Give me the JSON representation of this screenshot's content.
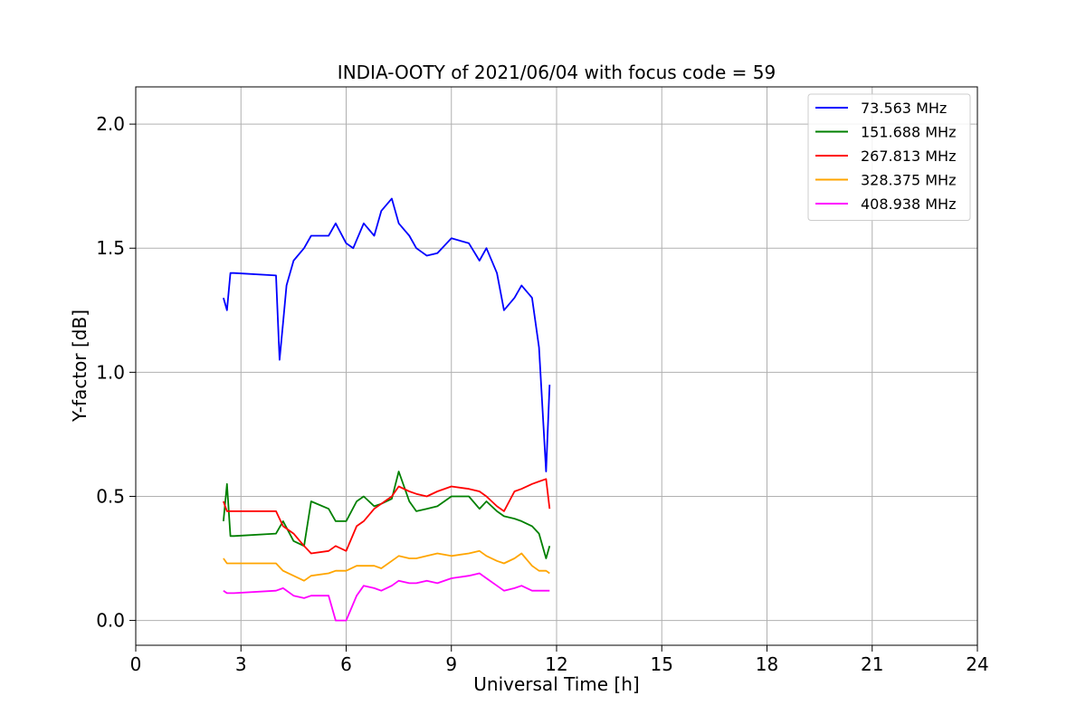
{
  "chart_data": {
    "type": "line",
    "title": "INDIA-OOTY of 2021/06/04 with focus code = 59",
    "xlabel": "Universal Time [h]",
    "ylabel": "Y-factor [dB]",
    "xlim": [
      0,
      24
    ],
    "ylim": [
      -0.1,
      2.15
    ],
    "xticks": [
      0,
      3,
      6,
      9,
      12,
      15,
      18,
      21,
      24
    ],
    "yticks": [
      0.0,
      0.5,
      1.0,
      1.5,
      2.0
    ],
    "xtick_labels": [
      "0",
      "3",
      "6",
      "9",
      "12",
      "15",
      "18",
      "21",
      "24"
    ],
    "ytick_labels": [
      "0.0",
      "0.5",
      "1.0",
      "1.5",
      "2.0"
    ],
    "grid": true,
    "legend_position": "top-right",
    "series": [
      {
        "name": "  73.563 MHz",
        "color": "#0000ff",
        "x": [
          2.5,
          2.6,
          2.7,
          2.8,
          4.0,
          4.1,
          4.2,
          4.3,
          4.5,
          4.8,
          5.0,
          5.5,
          5.7,
          6.0,
          6.2,
          6.5,
          6.8,
          7.0,
          7.3,
          7.5,
          7.8,
          8.0,
          8.3,
          8.6,
          9.0,
          9.5,
          9.8,
          10.0,
          10.3,
          10.5,
          10.8,
          11.0,
          11.3,
          11.5,
          11.7,
          11.8
        ],
        "y": [
          1.3,
          1.25,
          1.4,
          1.4,
          1.39,
          1.05,
          1.2,
          1.35,
          1.45,
          1.5,
          1.55,
          1.55,
          1.6,
          1.52,
          1.5,
          1.6,
          1.55,
          1.65,
          1.7,
          1.6,
          1.55,
          1.5,
          1.47,
          1.48,
          1.54,
          1.52,
          1.45,
          1.5,
          1.4,
          1.25,
          1.3,
          1.35,
          1.3,
          1.1,
          0.6,
          0.95
        ]
      },
      {
        "name": "151.688 MHz",
        "color": "#008000",
        "x": [
          2.5,
          2.6,
          2.7,
          2.8,
          4.0,
          4.2,
          4.5,
          4.8,
          5.0,
          5.5,
          5.7,
          6.0,
          6.3,
          6.5,
          6.8,
          7.0,
          7.3,
          7.5,
          7.8,
          8.0,
          8.3,
          8.6,
          9.0,
          9.5,
          9.8,
          10.0,
          10.3,
          10.5,
          10.8,
          11.0,
          11.3,
          11.5,
          11.7,
          11.8
        ],
        "y": [
          0.4,
          0.55,
          0.34,
          0.34,
          0.35,
          0.4,
          0.32,
          0.3,
          0.48,
          0.45,
          0.4,
          0.4,
          0.48,
          0.5,
          0.46,
          0.47,
          0.49,
          0.6,
          0.48,
          0.44,
          0.45,
          0.46,
          0.5,
          0.5,
          0.45,
          0.48,
          0.44,
          0.42,
          0.41,
          0.4,
          0.38,
          0.35,
          0.25,
          0.3
        ]
      },
      {
        "name": "267.813 MHz",
        "color": "#ff0000",
        "x": [
          2.5,
          2.6,
          2.7,
          2.8,
          4.0,
          4.2,
          4.5,
          4.8,
          5.0,
          5.5,
          5.7,
          6.0,
          6.3,
          6.5,
          6.8,
          7.0,
          7.3,
          7.5,
          7.8,
          8.0,
          8.3,
          8.6,
          9.0,
          9.5,
          9.8,
          10.0,
          10.3,
          10.5,
          10.8,
          11.0,
          11.3,
          11.5,
          11.7,
          11.8
        ],
        "y": [
          0.48,
          0.44,
          0.44,
          0.44,
          0.44,
          0.38,
          0.35,
          0.3,
          0.27,
          0.28,
          0.3,
          0.28,
          0.38,
          0.4,
          0.45,
          0.47,
          0.5,
          0.54,
          0.52,
          0.51,
          0.5,
          0.52,
          0.54,
          0.53,
          0.52,
          0.5,
          0.46,
          0.44,
          0.52,
          0.53,
          0.55,
          0.56,
          0.57,
          0.45
        ]
      },
      {
        "name": "328.375 MHz",
        "color": "#ffa500",
        "x": [
          2.5,
          2.6,
          2.7,
          2.8,
          4.0,
          4.2,
          4.5,
          4.8,
          5.0,
          5.5,
          5.7,
          6.0,
          6.3,
          6.5,
          6.8,
          7.0,
          7.3,
          7.5,
          7.8,
          8.0,
          8.3,
          8.6,
          9.0,
          9.5,
          9.8,
          10.0,
          10.3,
          10.5,
          10.8,
          11.0,
          11.3,
          11.5,
          11.7,
          11.8
        ],
        "y": [
          0.25,
          0.23,
          0.23,
          0.23,
          0.23,
          0.2,
          0.18,
          0.16,
          0.18,
          0.19,
          0.2,
          0.2,
          0.22,
          0.22,
          0.22,
          0.21,
          0.24,
          0.26,
          0.25,
          0.25,
          0.26,
          0.27,
          0.26,
          0.27,
          0.28,
          0.26,
          0.24,
          0.23,
          0.25,
          0.27,
          0.22,
          0.2,
          0.2,
          0.19
        ]
      },
      {
        "name": "408.938 MHz",
        "color": "#ff00ff",
        "x": [
          2.5,
          2.6,
          2.7,
          2.8,
          4.0,
          4.2,
          4.5,
          4.8,
          5.0,
          5.5,
          5.7,
          6.0,
          6.3,
          6.5,
          6.8,
          7.0,
          7.3,
          7.5,
          7.8,
          8.0,
          8.3,
          8.6,
          9.0,
          9.5,
          9.8,
          10.0,
          10.3,
          10.5,
          10.8,
          11.0,
          11.3,
          11.5,
          11.7,
          11.8
        ],
        "y": [
          0.12,
          0.11,
          0.11,
          0.11,
          0.12,
          0.13,
          0.1,
          0.09,
          0.1,
          0.1,
          0.0,
          0.0,
          0.1,
          0.14,
          0.13,
          0.12,
          0.14,
          0.16,
          0.15,
          0.15,
          0.16,
          0.15,
          0.17,
          0.18,
          0.19,
          0.17,
          0.14,
          0.12,
          0.13,
          0.14,
          0.12,
          0.12,
          0.12,
          0.12
        ]
      }
    ]
  }
}
